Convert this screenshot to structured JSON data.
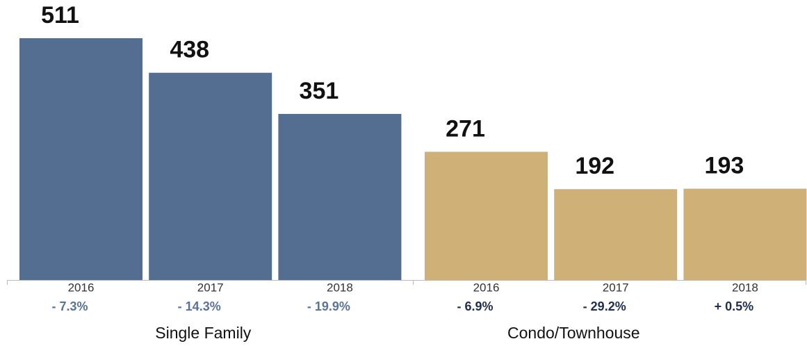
{
  "chart_data": {
    "type": "bar",
    "groups": [
      {
        "name": "Single Family",
        "color": "#546e91",
        "change_color": "#5a7398",
        "categories": [
          "2016",
          "2017",
          "2018"
        ],
        "values": [
          511,
          438,
          351
        ],
        "change_labels": [
          "- 7.3%",
          "- 14.3%",
          "- 19.9%"
        ]
      },
      {
        "name": "Condo/Townhouse",
        "color": "#cfb178",
        "change_color": "#1f2d4e",
        "categories": [
          "2016",
          "2017",
          "2018"
        ],
        "values": [
          271,
          192,
          193
        ],
        "change_labels": [
          "- 6.9%",
          "- 29.2%",
          "+ 0.5%"
        ]
      }
    ]
  }
}
